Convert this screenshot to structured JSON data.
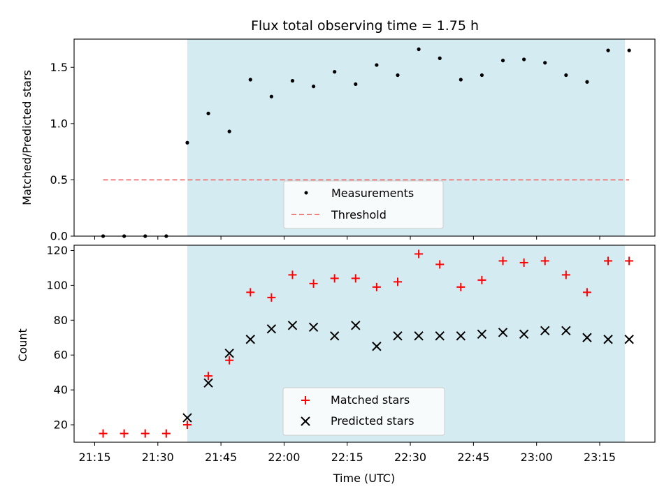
{
  "chart_data": [
    {
      "type": "scatter",
      "title": "Flux total observing time = 1.75 h",
      "ylabel": "Matched/Predicted stars",
      "xlabel": "",
      "ylim": [
        0,
        1.75
      ],
      "yticks": [
        "0.0",
        "0.5",
        "1.0",
        "1.5"
      ],
      "shaded_region": {
        "start": "21:37",
        "end": "23:21",
        "color": "#d4ebf1"
      },
      "legend": {
        "placement": "lower-center",
        "entries": [
          "Measurements",
          "Threshold"
        ]
      },
      "series": [
        {
          "name": "Measurements",
          "marker": "dot",
          "color": "#000000",
          "x": [
            "21:17",
            "21:22",
            "21:27",
            "21:32",
            "21:37",
            "21:42",
            "21:47",
            "21:52",
            "21:57",
            "22:02",
            "22:07",
            "22:12",
            "22:17",
            "22:22",
            "22:27",
            "22:32",
            "22:37",
            "22:42",
            "22:47",
            "22:52",
            "22:57",
            "23:02",
            "23:07",
            "23:12",
            "23:17",
            "23:22"
          ],
          "y": [
            0.0,
            0.0,
            0.0,
            0.0,
            0.83,
            1.09,
            0.93,
            1.39,
            1.24,
            1.38,
            1.33,
            1.46,
            1.35,
            1.52,
            1.43,
            1.66,
            1.58,
            1.39,
            1.43,
            1.56,
            1.57,
            1.54,
            1.43,
            1.37,
            1.65,
            1.65
          ]
        },
        {
          "name": "Threshold",
          "marker": "dashed-line",
          "color": "#f08080",
          "x": [
            "21:17",
            "23:22"
          ],
          "y": [
            0.5,
            0.5
          ]
        }
      ]
    },
    {
      "type": "scatter",
      "title": "",
      "ylabel": "Count",
      "xlabel": "Time (UTC)",
      "ylim": [
        10,
        123
      ],
      "yticks": [
        "20",
        "40",
        "60",
        "80",
        "100",
        "120"
      ],
      "xticks": [
        "21:15",
        "21:30",
        "21:45",
        "22:00",
        "22:15",
        "22:30",
        "22:45",
        "23:00",
        "23:15"
      ],
      "shaded_region": {
        "start": "21:37",
        "end": "23:21",
        "color": "#d4ebf1"
      },
      "legend": {
        "placement": "lower-center",
        "entries": [
          "Matched stars",
          "Predicted stars"
        ]
      },
      "series": [
        {
          "name": "Matched stars",
          "marker": "plus",
          "color": "#ff0000",
          "x": [
            "21:17",
            "21:22",
            "21:27",
            "21:32",
            "21:37",
            "21:42",
            "21:47",
            "21:52",
            "21:57",
            "22:02",
            "22:07",
            "22:12",
            "22:17",
            "22:22",
            "22:27",
            "22:32",
            "22:37",
            "22:42",
            "22:47",
            "22:52",
            "22:57",
            "23:02",
            "23:07",
            "23:12",
            "23:17",
            "23:22"
          ],
          "y": [
            15,
            15,
            15,
            15,
            20,
            48,
            57,
            96,
            93,
            106,
            101,
            104,
            104,
            99,
            102,
            118,
            112,
            99,
            103,
            114,
            113,
            114,
            106,
            96,
            114,
            114
          ]
        },
        {
          "name": "Predicted stars",
          "marker": "x",
          "color": "#000000",
          "x": [
            "21:37",
            "21:42",
            "21:47",
            "21:52",
            "21:57",
            "22:02",
            "22:07",
            "22:12",
            "22:17",
            "22:22",
            "22:27",
            "22:32",
            "22:37",
            "22:42",
            "22:47",
            "22:52",
            "22:57",
            "23:02",
            "23:07",
            "23:12",
            "23:17",
            "23:22"
          ],
          "y": [
            24,
            44,
            61,
            69,
            75,
            77,
            76,
            71,
            77,
            65,
            71,
            71,
            71,
            71,
            72,
            73,
            72,
            74,
            74,
            70,
            69,
            69
          ]
        }
      ]
    }
  ]
}
